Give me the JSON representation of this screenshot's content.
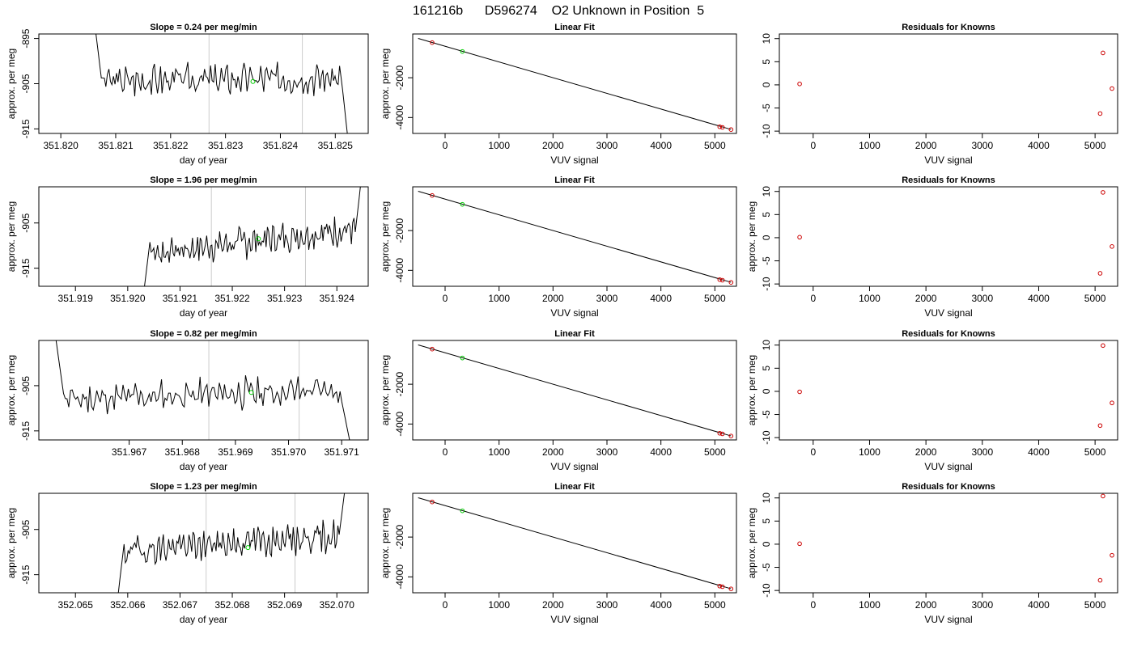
{
  "title": "161216b      D596274    O2 Unknown in Position  5",
  "chart_data": [
    {
      "type": "line",
      "panel": "timeseries",
      "title": "Slope =  0.24  per meg/min",
      "xlabel": "day of year",
      "ylabel": "approx. per meg",
      "xlim": [
        351.8196,
        351.8256
      ],
      "ylim": [
        -916,
        -894
      ],
      "xticks": [
        "351.820",
        "351.821",
        "351.822",
        "351.823",
        "351.824",
        "351.825"
      ],
      "yticks": [
        "-895",
        "-905",
        "-915"
      ],
      "start": 351.8206,
      "end": 351.8253,
      "start_y": -890,
      "level": -904,
      "end_y": -925,
      "trend": 0.24,
      "seed": 3,
      "vlines": [
        351.8227,
        351.8244
      ],
      "marker": {
        "x": 351.8235,
        "y": -904.5
      }
    },
    {
      "type": "line",
      "panel": "timeseries",
      "title": "Slope =  1.96  per meg/min",
      "xlabel": "day of year",
      "ylabel": "approx. per meg",
      "xlim": [
        351.9183,
        351.9246
      ],
      "ylim": [
        -919,
        -897
      ],
      "xticks": [
        "351.919",
        "351.920",
        "351.921",
        "351.922",
        "351.923",
        "351.924"
      ],
      "yticks": [
        "-905",
        "-915"
      ],
      "start": 351.9203,
      "end": 351.9245,
      "start_y": -921,
      "level": -909,
      "end_y": -892,
      "trend": 1.96,
      "seed": 7,
      "vlines": [
        351.9216,
        351.9234
      ],
      "marker": {
        "x": 351.9225,
        "y": -908.5
      }
    },
    {
      "type": "line",
      "panel": "timeseries",
      "title": "Slope =  0.82  per meg/min",
      "xlabel": "day of year",
      "ylabel": "approx. per meg",
      "xlim": [
        351.9653,
        351.9715
      ],
      "ylim": [
        -917,
        -895
      ],
      "xticks": [
        "351.967",
        "351.968",
        "351.969",
        "351.970",
        "351.971"
      ],
      "yticks": [
        "-905",
        "-915"
      ],
      "start": 351.9656,
      "end": 351.9712,
      "start_y": -893,
      "level": -907,
      "end_y": -920,
      "trend": 0.82,
      "seed": 11,
      "vlines": [
        351.9685,
        351.9702
      ],
      "marker": {
        "x": 351.9693,
        "y": -906.5
      }
    },
    {
      "type": "line",
      "panel": "timeseries",
      "title": "Slope =  1.23  per meg/min",
      "xlabel": "day of year",
      "ylabel": "approx. per meg",
      "xlim": [
        352.0643,
        352.0706
      ],
      "ylim": [
        -919,
        -897
      ],
      "xticks": [
        "352.065",
        "352.066",
        "352.067",
        "352.068",
        "352.069",
        "352.070"
      ],
      "yticks": [
        "-905",
        "-915"
      ],
      "start": 352.0658,
      "end": 352.0702,
      "start_y": -921,
      "level": -908,
      "end_y": -892,
      "trend": 1.23,
      "seed": 19,
      "vlines": [
        352.0675,
        352.0692
      ],
      "marker": {
        "x": 352.0683,
        "y": -909
      }
    },
    {
      "type": "scatter",
      "panel": "fit",
      "title": "Linear Fit",
      "xlabel": "VUV signal",
      "ylabel": "approx. per meg",
      "xlim": [
        -600,
        5400
      ],
      "ylim": [
        -4800,
        200
      ],
      "xticks": [
        0,
        1000,
        2000,
        3000,
        4000,
        5000
      ],
      "yticks": [
        -2000,
        -4000
      ],
      "line": {
        "x": [
          -500,
          5300
        ],
        "y": [
          -24,
          -4600
        ]
      },
      "red_points": [
        {
          "x": -240,
          "y": -235
        },
        {
          "x": 5090,
          "y": -4465
        },
        {
          "x": 5140,
          "y": -4495
        },
        {
          "x": 5300,
          "y": -4605
        }
      ],
      "green_points": [
        {
          "x": 320,
          "y": -680
        }
      ]
    },
    {
      "type": "scatter",
      "panel": "fit",
      "title": "Linear Fit",
      "xlabel": "VUV signal",
      "ylabel": "approx. per meg",
      "xlim": [
        -600,
        5400
      ],
      "ylim": [
        -4800,
        200
      ],
      "xticks": [
        0,
        1000,
        2000,
        3000,
        4000,
        5000
      ],
      "yticks": [
        -2000,
        -4000
      ],
      "line": {
        "x": [
          -500,
          5300
        ],
        "y": [
          -24,
          -4600
        ]
      },
      "red_points": [
        {
          "x": -240,
          "y": -235
        },
        {
          "x": 5090,
          "y": -4465
        },
        {
          "x": 5140,
          "y": -4495
        },
        {
          "x": 5300,
          "y": -4605
        }
      ],
      "green_points": [
        {
          "x": 320,
          "y": -680
        }
      ]
    },
    {
      "type": "scatter",
      "panel": "fit",
      "title": "Linear Fit",
      "xlabel": "VUV signal",
      "ylabel": "approx. per meg",
      "xlim": [
        -600,
        5400
      ],
      "ylim": [
        -4800,
        200
      ],
      "xticks": [
        0,
        1000,
        2000,
        3000,
        4000,
        5000
      ],
      "yticks": [
        -2000,
        -4000
      ],
      "line": {
        "x": [
          -500,
          5300
        ],
        "y": [
          -24,
          -4600
        ]
      },
      "red_points": [
        {
          "x": -240,
          "y": -235
        },
        {
          "x": 5090,
          "y": -4465
        },
        {
          "x": 5140,
          "y": -4495
        },
        {
          "x": 5300,
          "y": -4605
        }
      ],
      "green_points": [
        {
          "x": 320,
          "y": -680
        }
      ]
    },
    {
      "type": "scatter",
      "panel": "fit",
      "title": "Linear Fit",
      "xlabel": "VUV signal",
      "ylabel": "approx. per meg",
      "xlim": [
        -600,
        5400
      ],
      "ylim": [
        -4800,
        200
      ],
      "xticks": [
        0,
        1000,
        2000,
        3000,
        4000,
        5000
      ],
      "yticks": [
        -2000,
        -4000
      ],
      "line": {
        "x": [
          -500,
          5300
        ],
        "y": [
          -24,
          -4600
        ]
      },
      "red_points": [
        {
          "x": -240,
          "y": -235
        },
        {
          "x": 5090,
          "y": -4465
        },
        {
          "x": 5140,
          "y": -4495
        },
        {
          "x": 5300,
          "y": -4605
        }
      ],
      "green_points": [
        {
          "x": 320,
          "y": -680
        }
      ]
    },
    {
      "type": "scatter",
      "panel": "residuals",
      "title": "Residuals for Knowns",
      "xlabel": "VUV signal",
      "ylabel": "",
      "xlim": [
        -600,
        5400
      ],
      "ylim": [
        -10.5,
        11
      ],
      "xticks": [
        0,
        1000,
        2000,
        3000,
        4000,
        5000
      ],
      "yticks": [
        10,
        5,
        0,
        -5,
        -10
      ],
      "red_points": [
        {
          "x": -240,
          "y": 0.2
        },
        {
          "x": 5090,
          "y": -6.2
        },
        {
          "x": 5140,
          "y": 6.9
        },
        {
          "x": 5300,
          "y": -0.8
        }
      ]
    },
    {
      "type": "scatter",
      "panel": "residuals",
      "title": "Residuals for Knowns",
      "xlabel": "VUV signal",
      "ylabel": "approx. per meg",
      "xlim": [
        -600,
        5400
      ],
      "ylim": [
        -10.5,
        11
      ],
      "xticks": [
        0,
        1000,
        2000,
        3000,
        4000,
        5000
      ],
      "yticks": [
        10,
        5,
        0,
        -5,
        -10
      ],
      "red_points": [
        {
          "x": -240,
          "y": 0.1
        },
        {
          "x": 5090,
          "y": -7.7
        },
        {
          "x": 5140,
          "y": 9.8
        },
        {
          "x": 5300,
          "y": -1.9
        }
      ]
    },
    {
      "type": "scatter",
      "panel": "residuals",
      "title": "Residuals for Knowns",
      "xlabel": "VUV signal",
      "ylabel": "approx. per meg",
      "xlim": [
        -600,
        5400
      ],
      "ylim": [
        -10.5,
        11
      ],
      "xticks": [
        0,
        1000,
        2000,
        3000,
        4000,
        5000
      ],
      "yticks": [
        10,
        5,
        0,
        -5,
        -10
      ],
      "red_points": [
        {
          "x": -240,
          "y": -0.1
        },
        {
          "x": 5090,
          "y": -7.4
        },
        {
          "x": 5140,
          "y": 9.9
        },
        {
          "x": 5300,
          "y": -2.5
        }
      ]
    },
    {
      "type": "scatter",
      "panel": "residuals",
      "title": "Residuals for Knowns",
      "xlabel": "VUV signal",
      "ylabel": "approx. per meg",
      "xlim": [
        -600,
        5400
      ],
      "ylim": [
        -10.5,
        11
      ],
      "xticks": [
        0,
        1000,
        2000,
        3000,
        4000,
        5000
      ],
      "yticks": [
        10,
        5,
        0,
        -5,
        -10
      ],
      "red_points": [
        {
          "x": -240,
          "y": 0.1
        },
        {
          "x": 5090,
          "y": -7.8
        },
        {
          "x": 5140,
          "y": 10.4
        },
        {
          "x": 5300,
          "y": -2.4
        }
      ]
    }
  ],
  "colors": {
    "line": "#000000",
    "known": "#cc0000",
    "unknown": "#00cc00",
    "vline": "#cccccc"
  }
}
